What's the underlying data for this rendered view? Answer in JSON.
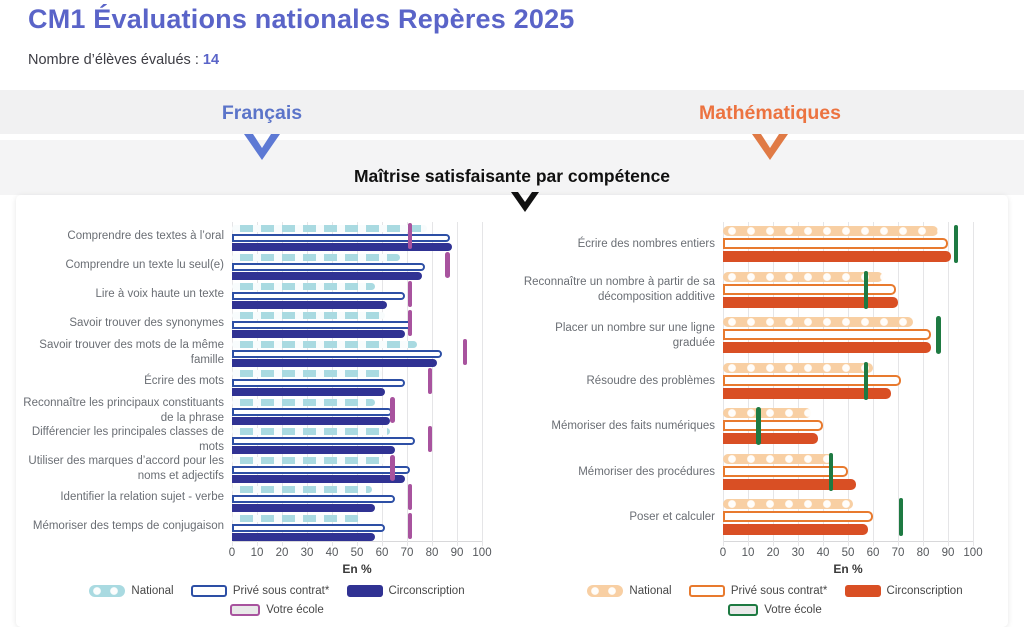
{
  "header": {
    "title": "CM1 Évaluations nationales Repères 2025",
    "students_label": "Nombre d’élèves évalués :",
    "students_count": "14"
  },
  "tabs": {
    "francais": "Français",
    "mathematiques": "Mathématiques"
  },
  "section_title": "Maîtrise satisfaisante par compétence",
  "axis": {
    "ticks": [
      0,
      10,
      20,
      30,
      40,
      50,
      60,
      70,
      80,
      90,
      100
    ],
    "label": "En %"
  },
  "legend": {
    "national": "National",
    "prive": "Privé sous contrat*",
    "circonscription": "Circonscription",
    "ecole": "Votre école"
  },
  "colors": {
    "title": "#5a64c8",
    "accent_blue": "#5b74c9",
    "accent_orange": "#ec7340",
    "fr": {
      "national": "#a9dae1",
      "prive_border": "#2d4fa5",
      "circonscription": "#303293",
      "ecole": "#a8539e"
    },
    "math": {
      "national": "#f8cfa3",
      "prive_border": "#e87a2e",
      "circonscription": "#d94f24",
      "ecole": "#1e7a42"
    }
  },
  "chart_data": [
    {
      "type": "bar",
      "orientation": "horizontal",
      "title": "Français — Maîtrise satisfaisante par compétence",
      "xlabel": "En %",
      "xlim": [
        0,
        100
      ],
      "grid": true,
      "legend_position": "bottom",
      "categories": [
        "Comprendre des textes à l’oral",
        "Comprendre un texte lu seul(e)",
        "Lire à voix haute un texte",
        "Savoir trouver des synonymes",
        "Savoir trouver des mots de la même famille",
        "Écrire des mots",
        "Reconnaître les principaux constituants de la phrase",
        "Différencier les principales classes de mots",
        "Utiliser des marques d’accord pour les noms et adjectifs",
        "Identifier la relation sujet - verbe",
        "Mémoriser des temps de conjugaison"
      ],
      "series": [
        {
          "name": "National",
          "values": [
            78,
            67,
            57,
            61,
            74,
            60,
            57,
            63,
            61,
            56,
            51
          ]
        },
        {
          "name": "Privé sous contrat*",
          "values": [
            87,
            77,
            69,
            72,
            84,
            69,
            64,
            73,
            71,
            65,
            61
          ]
        },
        {
          "name": "Circonscription",
          "values": [
            88,
            76,
            62,
            69,
            82,
            61,
            63,
            65,
            69,
            57,
            57
          ]
        },
        {
          "name": "Votre école",
          "values": [
            71,
            86,
            71,
            71,
            93,
            79,
            64,
            79,
            64,
            71,
            71
          ]
        }
      ]
    },
    {
      "type": "bar",
      "orientation": "horizontal",
      "title": "Mathématiques — Maîtrise satisfaisante par compétence",
      "xlabel": "En %",
      "xlim": [
        0,
        100
      ],
      "grid": true,
      "legend_position": "bottom",
      "categories": [
        "Écrire des nombres entiers",
        "Reconnaître un nombre à partir de sa décomposition additive",
        "Placer un nombre sur une ligne graduée",
        "Résoudre des problèmes",
        "Mémoriser des faits numériques",
        "Mémoriser des procédures",
        "Poser et calculer"
      ],
      "series": [
        {
          "name": "National",
          "values": [
            86,
            64,
            76,
            60,
            35,
            44,
            52
          ]
        },
        {
          "name": "Privé sous contrat*",
          "values": [
            90,
            69,
            83,
            71,
            40,
            50,
            60
          ]
        },
        {
          "name": "Circonscription",
          "values": [
            91,
            70,
            83,
            67,
            38,
            53,
            58
          ]
        },
        {
          "name": "Votre école",
          "values": [
            93,
            57,
            86,
            57,
            14,
            43,
            71
          ]
        }
      ]
    }
  ]
}
